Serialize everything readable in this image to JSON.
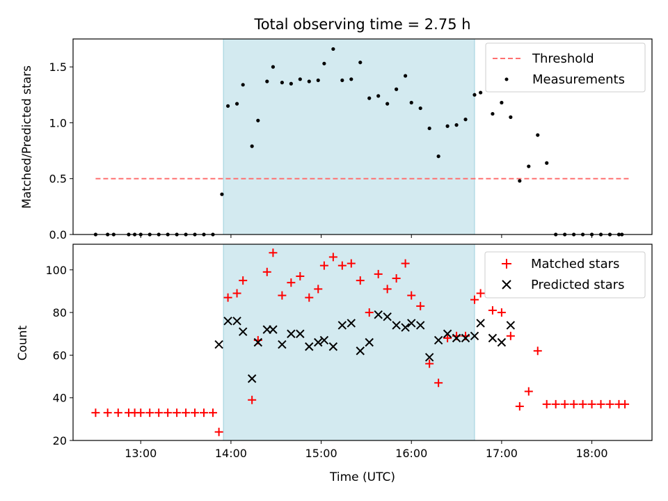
{
  "chart_data": [
    {
      "type": "scatter",
      "title": "Total observing time = 2.75 h",
      "xlabel": "",
      "ylabel": "Matched/Predicted stars",
      "ylim": [
        0,
        1.75
      ],
      "yticks": [
        "0.0",
        "0.5",
        "1.0",
        "1.5"
      ],
      "yticks_values": [
        0,
        0.5,
        1.0,
        1.5
      ],
      "xlim": [
        "12:15",
        "18:40"
      ],
      "shaded_region": [
        "13:55",
        "16:42"
      ],
      "shade_color": "#d3eaf0",
      "legend_position": "top-right",
      "legend": [
        "Threshold",
        "Measurements"
      ],
      "threshold": {
        "name": "Threshold",
        "value": 0.5,
        "x_range": [
          "12:30",
          "18:25"
        ],
        "color": "#ff7070",
        "style": "dashed"
      },
      "series": [
        {
          "name": "Measurements",
          "marker": "dot",
          "color": "#000000",
          "x": [
            "12:30",
            "12:38",
            "12:42",
            "12:52",
            "12:56",
            "13:00",
            "13:06",
            "13:12",
            "13:18",
            "13:24",
            "13:30",
            "13:36",
            "13:42",
            "13:48",
            "13:54",
            "13:58",
            "14:04",
            "14:08",
            "14:14",
            "14:18",
            "14:24",
            "14:28",
            "14:34",
            "14:40",
            "14:46",
            "14:52",
            "14:58",
            "15:02",
            "15:08",
            "15:14",
            "15:20",
            "15:26",
            "15:32",
            "15:38",
            "15:44",
            "15:50",
            "15:56",
            "16:00",
            "16:06",
            "16:12",
            "16:18",
            "16:24",
            "16:30",
            "16:36",
            "16:42",
            "16:46",
            "16:54",
            "17:00",
            "17:06",
            "17:12",
            "17:18",
            "17:24",
            "17:30",
            "17:36",
            "17:42",
            "17:48",
            "17:54",
            "18:00",
            "18:06",
            "18:12",
            "18:18",
            "18:20"
          ],
          "y": [
            0,
            0,
            0,
            0,
            0,
            0,
            0,
            0,
            0,
            0,
            0,
            0,
            0,
            0,
            0.36,
            1.15,
            1.17,
            1.34,
            0.79,
            1.02,
            1.37,
            1.5,
            1.36,
            1.35,
            1.39,
            1.37,
            1.38,
            1.53,
            1.66,
            1.38,
            1.39,
            1.54,
            1.22,
            1.24,
            1.17,
            1.3,
            1.42,
            1.18,
            1.13,
            0.95,
            0.7,
            0.97,
            0.98,
            1.03,
            1.25,
            1.27,
            1.08,
            1.18,
            1.05,
            0.48,
            0.61,
            0.89,
            0.64,
            0,
            0,
            0,
            0,
            0,
            0,
            0,
            0,
            0
          ]
        }
      ]
    },
    {
      "type": "scatter",
      "title": "",
      "xlabel": "Time (UTC)",
      "ylabel": "Count",
      "ylim": [
        20,
        112
      ],
      "yticks": [
        "20",
        "40",
        "60",
        "80",
        "100"
      ],
      "yticks_values": [
        20,
        40,
        60,
        80,
        100
      ],
      "xticks": [
        "13:00",
        "14:00",
        "15:00",
        "16:00",
        "17:00",
        "18:00"
      ],
      "xlim": [
        "12:15",
        "18:40"
      ],
      "shaded_region": [
        "13:55",
        "16:42"
      ],
      "shade_color": "#d3eaf0",
      "legend_position": "top-right",
      "legend": [
        "Matched stars",
        "Predicted stars"
      ],
      "series": [
        {
          "name": "Matched stars",
          "marker": "plus",
          "color": "#ff0000",
          "x": [
            "12:30",
            "12:38",
            "12:45",
            "12:52",
            "12:56",
            "13:00",
            "13:06",
            "13:12",
            "13:18",
            "13:24",
            "13:30",
            "13:36",
            "13:42",
            "13:48",
            "13:52",
            "13:58",
            "14:04",
            "14:08",
            "14:14",
            "14:18",
            "14:24",
            "14:28",
            "14:34",
            "14:40",
            "14:46",
            "14:52",
            "14:58",
            "15:02",
            "15:08",
            "15:14",
            "15:20",
            "15:26",
            "15:32",
            "15:38",
            "15:44",
            "15:50",
            "15:56",
            "16:00",
            "16:06",
            "16:12",
            "16:18",
            "16:24",
            "16:30",
            "16:36",
            "16:42",
            "16:46",
            "16:54",
            "17:00",
            "17:06",
            "17:12",
            "17:18",
            "17:24",
            "17:30",
            "17:36",
            "17:42",
            "17:48",
            "17:54",
            "18:00",
            "18:06",
            "18:12",
            "18:18",
            "18:22"
          ],
          "y": [
            33,
            33,
            33,
            33,
            33,
            33,
            33,
            33,
            33,
            33,
            33,
            33,
            33,
            33,
            24,
            87,
            89,
            95,
            39,
            67,
            99,
            108,
            88,
            94,
            97,
            87,
            91,
            102,
            106,
            102,
            103,
            95,
            80,
            98,
            91,
            96,
            103,
            88,
            83,
            56,
            47,
            68,
            69,
            69,
            86,
            89,
            81,
            80,
            69,
            36,
            43,
            62,
            37,
            37,
            37,
            37,
            37,
            37,
            37,
            37,
            37,
            37
          ]
        },
        {
          "name": "Predicted stars",
          "marker": "x",
          "color": "#000000",
          "x": [
            "13:52",
            "13:58",
            "14:04",
            "14:08",
            "14:14",
            "14:18",
            "14:24",
            "14:28",
            "14:34",
            "14:40",
            "14:46",
            "14:52",
            "14:58",
            "15:02",
            "15:08",
            "15:14",
            "15:20",
            "15:26",
            "15:32",
            "15:38",
            "15:44",
            "15:50",
            "15:56",
            "16:00",
            "16:06",
            "16:12",
            "16:18",
            "16:24",
            "16:30",
            "16:36",
            "16:42",
            "16:46",
            "16:54",
            "17:00",
            "17:06"
          ],
          "y": [
            65,
            76,
            76,
            71,
            49,
            66,
            72,
            72,
            65,
            70,
            70,
            64,
            66,
            67,
            64,
            74,
            75,
            62,
            66,
            79,
            78,
            74,
            73,
            75,
            74,
            59,
            67,
            70,
            68,
            68,
            69,
            75,
            68,
            66,
            74
          ]
        }
      ]
    }
  ]
}
